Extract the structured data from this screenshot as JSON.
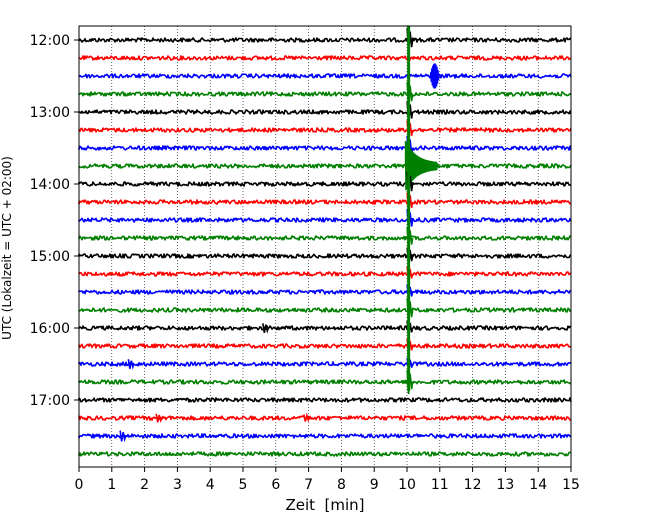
{
  "chart_data": {
    "type": "line",
    "title": "",
    "xlabel": "Zeit  [min]",
    "ylabel": "UTC (Lokalzeit = UTC + 02:00)",
    "xlim": [
      0,
      15
    ],
    "x_ticks": [
      "0",
      "1",
      "2",
      "3",
      "4",
      "5",
      "6",
      "7",
      "8",
      "9",
      "10",
      "11",
      "12",
      "13",
      "14",
      "15"
    ],
    "y_ticks": [
      "12:00",
      "13:00",
      "14:00",
      "15:00",
      "16:00",
      "17:00"
    ],
    "grid": "vertical-dotted",
    "rows_per_hour": 4,
    "row_count": 24,
    "row_colors": [
      "#000000",
      "#ff0000",
      "#0000ff",
      "#008000"
    ],
    "events": [
      {
        "row": 0,
        "x": 10.05,
        "kind": "spike",
        "amplitude": 1.0
      },
      {
        "row": 2,
        "x": 10.85,
        "kind": "burst",
        "amplitude": 0.9
      },
      {
        "row": 3,
        "x": 10.05,
        "kind": "spike",
        "amplitude": 1.0
      },
      {
        "row": 4,
        "x": 10.05,
        "kind": "spike",
        "amplitude": 0.9
      },
      {
        "row": 5,
        "x": 10.05,
        "kind": "spike",
        "amplitude": 0.8
      },
      {
        "row": 6,
        "x": 10.05,
        "kind": "spike",
        "amplitude": 1.0
      },
      {
        "row": 7,
        "x": 10.05,
        "kind": "earthquake",
        "amplitude": 1.0
      },
      {
        "row": 8,
        "x": 10.05,
        "kind": "spike",
        "amplitude": 1.0
      },
      {
        "row": 9,
        "x": 10.05,
        "kind": "spike",
        "amplitude": 0.8
      },
      {
        "row": 10,
        "x": 10.05,
        "kind": "spike",
        "amplitude": 0.9
      },
      {
        "row": 11,
        "x": 10.05,
        "kind": "spike",
        "amplitude": 0.9
      },
      {
        "row": 12,
        "x": 10.05,
        "kind": "spike",
        "amplitude": 0.7
      },
      {
        "row": 13,
        "x": 10.05,
        "kind": "spike",
        "amplitude": 0.6
      },
      {
        "row": 14,
        "x": 10.05,
        "kind": "spike",
        "amplitude": 0.6
      },
      {
        "row": 15,
        "x": 10.05,
        "kind": "spike",
        "amplitude": 1.0
      },
      {
        "row": 16,
        "x": 10.05,
        "kind": "spike",
        "amplitude": 0.6
      },
      {
        "row": 16,
        "x": 5.65,
        "kind": "spike",
        "amplitude": 0.4
      },
      {
        "row": 17,
        "x": 10.05,
        "kind": "spike",
        "amplitude": 0.6
      },
      {
        "row": 18,
        "x": 10.05,
        "kind": "spike",
        "amplitude": 0.5
      },
      {
        "row": 18,
        "x": 1.55,
        "kind": "spike",
        "amplitude": 0.4
      },
      {
        "row": 19,
        "x": 10.05,
        "kind": "spike",
        "amplitude": 1.0
      },
      {
        "row": 21,
        "x": 2.4,
        "kind": "spike",
        "amplitude": 0.35
      },
      {
        "row": 21,
        "x": 6.9,
        "kind": "spike",
        "amplitude": 0.3
      },
      {
        "row": 22,
        "x": 1.3,
        "kind": "spike",
        "amplitude": 0.45
      }
    ]
  }
}
